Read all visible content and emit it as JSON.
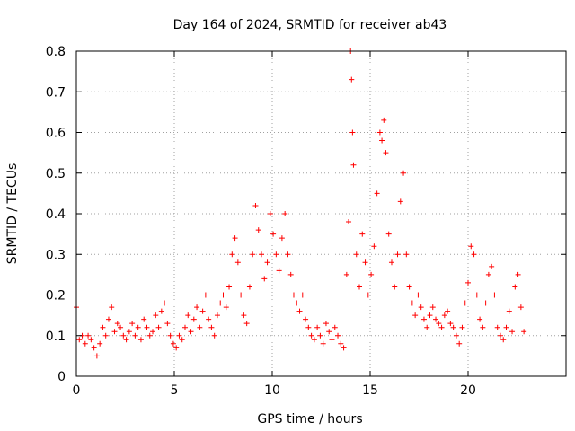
{
  "chart_data": {
    "type": "scatter",
    "title": "Day 164 of 2024, SRMTID for receiver ab43",
    "xlabel": "GPS time / hours",
    "ylabel": "SRMTID / TECUs",
    "xlim": [
      0,
      25
    ],
    "ylim": [
      0,
      0.8
    ],
    "xticks": [
      0,
      5,
      10,
      15,
      20
    ],
    "yticks": [
      0,
      0.1,
      0.2,
      0.3,
      0.4,
      0.5,
      0.6,
      0.7,
      0.8
    ],
    "grid": true,
    "marker": "+",
    "color": "#ff0000",
    "series": [
      {
        "name": "SRMTID",
        "x": [
          0.0,
          0.15,
          0.3,
          0.45,
          0.6,
          0.75,
          0.9,
          1.05,
          1.2,
          1.35,
          1.5,
          1.65,
          1.8,
          1.95,
          2.1,
          2.25,
          2.4,
          2.55,
          2.7,
          2.85,
          3.0,
          3.15,
          3.3,
          3.45,
          3.6,
          3.75,
          3.9,
          4.05,
          4.2,
          4.35,
          4.5,
          4.65,
          4.8,
          4.95,
          5.1,
          5.25,
          5.4,
          5.55,
          5.7,
          5.85,
          6.0,
          6.15,
          6.3,
          6.45,
          6.6,
          6.75,
          6.9,
          7.05,
          7.2,
          7.35,
          7.5,
          7.65,
          7.8,
          7.95,
          8.1,
          8.25,
          8.4,
          8.55,
          8.7,
          8.85,
          9.0,
          9.15,
          9.3,
          9.45,
          9.6,
          9.75,
          9.9,
          10.05,
          10.2,
          10.35,
          10.5,
          10.65,
          10.8,
          10.95,
          11.1,
          11.25,
          11.4,
          11.55,
          11.7,
          11.85,
          12.0,
          12.15,
          12.3,
          12.45,
          12.6,
          12.75,
          12.9,
          13.05,
          13.2,
          13.35,
          13.5,
          13.65,
          13.8,
          13.9,
          14.0,
          14.05,
          14.1,
          14.15,
          14.3,
          14.45,
          14.6,
          14.75,
          14.9,
          15.05,
          15.2,
          15.35,
          15.5,
          15.6,
          15.7,
          15.8,
          15.95,
          16.1,
          16.25,
          16.4,
          16.55,
          16.7,
          16.85,
          17.0,
          17.15,
          17.3,
          17.45,
          17.6,
          17.75,
          17.9,
          18.05,
          18.2,
          18.35,
          18.5,
          18.65,
          18.8,
          18.95,
          19.1,
          19.25,
          19.4,
          19.55,
          19.7,
          19.85,
          20.0,
          20.15,
          20.3,
          20.45,
          20.6,
          20.75,
          20.9,
          21.05,
          21.2,
          21.35,
          21.5,
          21.65,
          21.8,
          21.95,
          22.1,
          22.25,
          22.4,
          22.55,
          22.7,
          22.85
        ],
        "y": [
          0.17,
          0.09,
          0.1,
          0.08,
          0.1,
          0.09,
          0.07,
          0.05,
          0.08,
          0.12,
          0.1,
          0.14,
          0.17,
          0.11,
          0.13,
          0.12,
          0.1,
          0.09,
          0.11,
          0.13,
          0.1,
          0.12,
          0.09,
          0.14,
          0.12,
          0.1,
          0.11,
          0.15,
          0.12,
          0.16,
          0.18,
          0.13,
          0.1,
          0.08,
          0.07,
          0.1,
          0.09,
          0.12,
          0.15,
          0.11,
          0.14,
          0.17,
          0.12,
          0.16,
          0.2,
          0.14,
          0.12,
          0.1,
          0.15,
          0.18,
          0.2,
          0.17,
          0.22,
          0.3,
          0.34,
          0.28,
          0.2,
          0.15,
          0.13,
          0.22,
          0.3,
          0.42,
          0.36,
          0.3,
          0.24,
          0.28,
          0.4,
          0.35,
          0.3,
          0.26,
          0.34,
          0.4,
          0.3,
          0.25,
          0.2,
          0.18,
          0.16,
          0.2,
          0.14,
          0.12,
          0.1,
          0.09,
          0.12,
          0.1,
          0.08,
          0.13,
          0.11,
          0.09,
          0.12,
          0.1,
          0.08,
          0.07,
          0.25,
          0.38,
          0.8,
          0.73,
          0.6,
          0.52,
          0.3,
          0.22,
          0.35,
          0.28,
          0.2,
          0.25,
          0.32,
          0.45,
          0.6,
          0.58,
          0.63,
          0.55,
          0.35,
          0.28,
          0.22,
          0.3,
          0.43,
          0.5,
          0.3,
          0.22,
          0.18,
          0.15,
          0.2,
          0.17,
          0.14,
          0.12,
          0.15,
          0.17,
          0.14,
          0.13,
          0.12,
          0.15,
          0.16,
          0.13,
          0.12,
          0.1,
          0.08,
          0.12,
          0.18,
          0.23,
          0.32,
          0.3,
          0.2,
          0.14,
          0.12,
          0.18,
          0.25,
          0.27,
          0.2,
          0.12,
          0.1,
          0.09,
          0.12,
          0.16,
          0.11,
          0.22,
          0.25,
          0.17,
          0.11
        ]
      }
    ]
  }
}
